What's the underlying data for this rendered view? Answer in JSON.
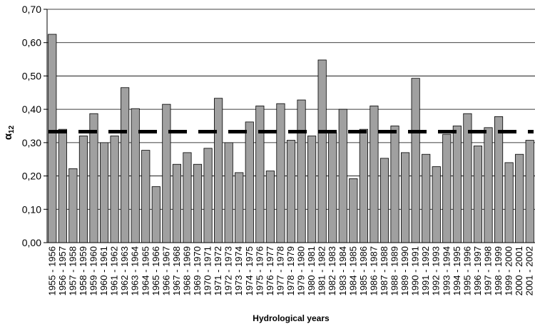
{
  "chart_data": {
    "type": "bar",
    "title": "",
    "xlabel": "Hydrological years",
    "ylabel": "α12",
    "ylabel_main": "α",
    "ylabel_sub": "12",
    "ylim": [
      0,
      0.7
    ],
    "yticks": [
      0,
      0.1,
      0.2,
      0.3,
      0.4,
      0.5,
      0.6,
      0.7
    ],
    "ytick_labels": [
      "0,00",
      "0,10",
      "0,20",
      "0,30",
      "0,40",
      "0,50",
      "0,60",
      "0,70"
    ],
    "grid": true,
    "legend": "none",
    "categories": [
      "1955 - 1956",
      "1956 - 1957",
      "1957 - 1958",
      "1958 - 1959",
      "1959 - 1960",
      "1960 - 1961",
      "1961 - 1962",
      "1962 - 1963",
      "1963 - 1964",
      "1964 - 1965",
      "1965 - 1966",
      "1966 - 1967",
      "1967 - 1968",
      "1968 - 1969",
      "1969 - 1970",
      "1970 - 1971",
      "1971 - 1972",
      "1972 - 1973",
      "1973 - 1974",
      "1974 - 1975",
      "1975 - 1976",
      "1976 - 1977",
      "1977 - 1978",
      "1978 - 1979",
      "1979 - 1980",
      "1980 - 1981",
      "1981 - 1982",
      "1982 - 1983",
      "1983 - 1984",
      "1984 - 1985",
      "1985 - 1986",
      "1986 - 1987",
      "1987 - 1988",
      "1988 - 1989",
      "1989 - 1990",
      "1990 - 1991",
      "1991 - 1992",
      "1992 - 1993",
      "1993 - 1994",
      "1994 - 1995",
      "1995 - 1996",
      "1996 - 1997",
      "1997 - 1998",
      "1998 - 1999",
      "1999 - 2000",
      "2000 - 2001",
      "2001 - 2002"
    ],
    "values": [
      0.625,
      0.34,
      0.222,
      0.32,
      0.387,
      0.3,
      0.32,
      0.465,
      0.402,
      0.277,
      0.168,
      0.415,
      0.235,
      0.27,
      0.235,
      0.283,
      0.433,
      0.3,
      0.21,
      0.362,
      0.41,
      0.215,
      0.417,
      0.307,
      0.428,
      0.32,
      0.548,
      0.33,
      0.4,
      0.192,
      0.34,
      0.41,
      0.253,
      0.35,
      0.27,
      0.493,
      0.265,
      0.228,
      0.325,
      0.35,
      0.387,
      0.29,
      0.345,
      0.378,
      0.24,
      0.265,
      0.307
    ],
    "mean_line": 0.333,
    "colors": {
      "bar": "#a0a0a0",
      "bar_stroke": "#000000",
      "mean_line": "#000000",
      "grid": "#000000"
    }
  }
}
